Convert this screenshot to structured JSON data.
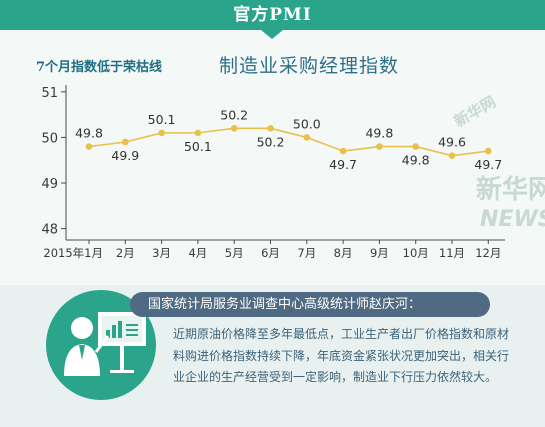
{
  "header": {
    "title": "官方PMI"
  },
  "chart_data": {
    "type": "line",
    "subtitle": "7个月指数低于荣枯线",
    "title": "制造业采购经理指数",
    "categories": [
      "2015年1月",
      "2月",
      "3月",
      "4月",
      "5月",
      "6月",
      "7月",
      "8月",
      "9月",
      "10月",
      "11月",
      "12月"
    ],
    "series": [
      {
        "values": [
          49.8,
          49.9,
          50.1,
          50.1,
          50.2,
          50.2,
          50.0,
          49.7,
          49.8,
          49.8,
          49.6,
          49.7
        ]
      }
    ],
    "data_labels": [
      "49.8",
      "49.9",
      "50.1",
      "50.1",
      "50.2",
      "50.2",
      "50.0",
      "49.7",
      "49.8",
      "49.8",
      "49.6",
      "49.7"
    ],
    "label_position": [
      "above",
      "below",
      "above",
      "below",
      "above",
      "below",
      "above",
      "below",
      "above",
      "below",
      "above",
      "below"
    ],
    "ylim": [
      47.75,
      51.15
    ],
    "yticks": [
      48,
      49,
      50,
      51
    ],
    "ytick_labels": [
      "48",
      "49",
      "50",
      "51"
    ],
    "line_color": "#e8c14a",
    "grid": false
  },
  "watermark": {
    "brand": "新华网",
    "brand_latin": "NEWS",
    "color": "#c8d8d4"
  },
  "quote": {
    "speaker": "国家统计局服务业调查中心高级统计师赵庆河：",
    "text": "近期原油价格降至多年最低点，工业生产者出厂价格指数和原材料购进价格指数持续下降，年底资金紧张状况更加突出，相关行业企业的生产经营受到一定影响，制造业下行压力依然较大。"
  },
  "colors": {
    "banner": "#2aa58c",
    "speaker_bar": "#4f6a82",
    "text": "#3c6278",
    "axis": "#4a4a4a"
  },
  "icons": [
    "presenter-illustration-icon"
  ]
}
